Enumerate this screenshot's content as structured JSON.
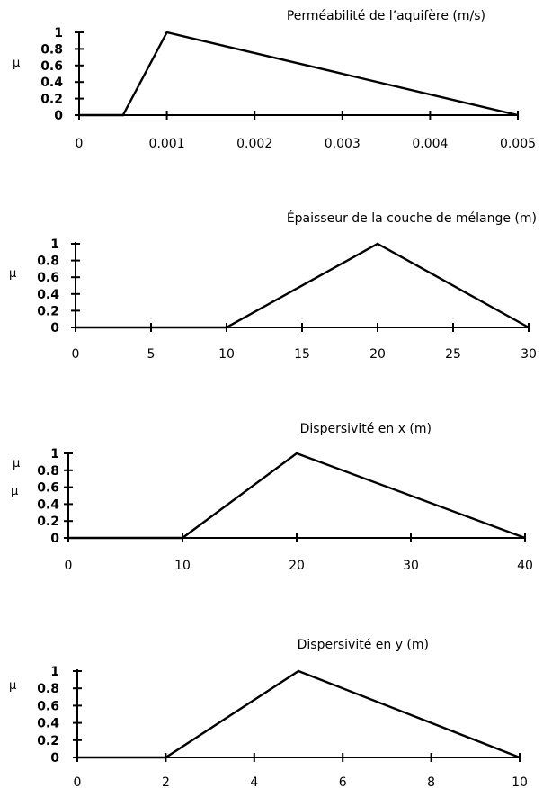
{
  "chart_data": [
    {
      "type": "line",
      "title": "Perméabilité de l’aquifère (m/s)",
      "ylabel": "μ",
      "xlim": [
        0,
        0.005
      ],
      "ylim": [
        0,
        1
      ],
      "x_ticks": [
        "0",
        "0.001",
        "0.002",
        "0.003",
        "0.004",
        "0.005"
      ],
      "y_ticks": [
        "0",
        "0.2",
        "0.4",
        "0.6",
        "0.8",
        "1"
      ],
      "x": [
        0,
        0.0005,
        0.001,
        0.005
      ],
      "y": [
        0,
        0,
        1,
        0
      ]
    },
    {
      "type": "line",
      "title": "Épaisseur de la couche de mélange (m)",
      "ylabel": "μ",
      "xlim": [
        0,
        30
      ],
      "ylim": [
        0,
        1
      ],
      "x_ticks": [
        "0",
        "5",
        "10",
        "15",
        "20",
        "25",
        "30"
      ],
      "y_ticks": [
        "0",
        "0.2",
        "0.4",
        "0.6",
        "0.8",
        "1"
      ],
      "x": [
        0,
        10,
        20,
        30
      ],
      "y": [
        0,
        0,
        1,
        0
      ]
    },
    {
      "type": "line",
      "title": "Dispersivité en x (m)",
      "ylabel": "μ",
      "ylabel_extra": "μ",
      "xlim": [
        0,
        40
      ],
      "ylim": [
        0,
        1
      ],
      "x_ticks": [
        "0",
        "10",
        "20",
        "30",
        "40"
      ],
      "y_ticks": [
        "0",
        "0.2",
        "0.4",
        "0.6",
        "0.8",
        "1"
      ],
      "x": [
        0,
        10,
        20,
        40
      ],
      "y": [
        0,
        0,
        1,
        0
      ]
    },
    {
      "type": "line",
      "title": "Dispersivité en y (m)",
      "ylabel": "μ",
      "xlim": [
        0,
        10
      ],
      "ylim": [
        0,
        1
      ],
      "x_ticks": [
        "0",
        "2",
        "4",
        "6",
        "8",
        "10"
      ],
      "y_ticks": [
        "0",
        "0.2",
        "0.4",
        "0.6",
        "0.8",
        "1"
      ],
      "x": [
        0,
        2,
        5,
        10
      ],
      "y": [
        0,
        0,
        1,
        0
      ]
    }
  ]
}
